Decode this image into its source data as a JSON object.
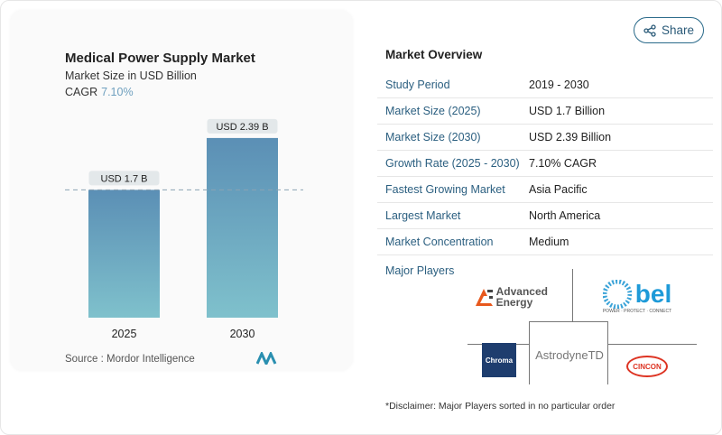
{
  "chart_data": {
    "type": "bar",
    "title": "Medical Power Supply Market",
    "subtitle": "Market Size in USD Billion",
    "cagr_label": "CAGR",
    "cagr_value": "7.10%",
    "categories": [
      "2025",
      "2030"
    ],
    "values": [
      1.7,
      2.39
    ],
    "data_labels": [
      "USD 1.7 B",
      "USD 2.39 B"
    ],
    "ylim": [
      0,
      2.4
    ],
    "grid": false,
    "reference_line": 1.7,
    "colors": {
      "top": "#5b8fb5",
      "bottom": "#7fc1cc"
    }
  },
  "source": "Source :  Mordor Intelligence",
  "share_label": "Share",
  "overview": {
    "title": "Market Overview",
    "rows": [
      {
        "k": "Study Period",
        "v": "2019 - 2030"
      },
      {
        "k": "Market Size (2025)",
        "v": "USD 1.7 Billion"
      },
      {
        "k": "Market Size (2030)",
        "v": "USD 2.39 Billion"
      },
      {
        "k": "Growth Rate (2025 - 2030)",
        "v": "7.10% CAGR"
      },
      {
        "k": "Fastest Growing Market",
        "v": "Asia Pacific"
      },
      {
        "k": "Largest Market",
        "v": "North America"
      },
      {
        "k": "Market Concentration",
        "v": "Medium"
      }
    ]
  },
  "players_label": "Major Players",
  "players": [
    "Advanced Energy",
    "bel",
    "Chroma",
    "AstrodyneTD",
    "CINCON"
  ],
  "bel_tagline": "POWER · PROTECT · CONNECT",
  "disclaimer": "*Disclaimer: Major Players sorted in no particular order"
}
